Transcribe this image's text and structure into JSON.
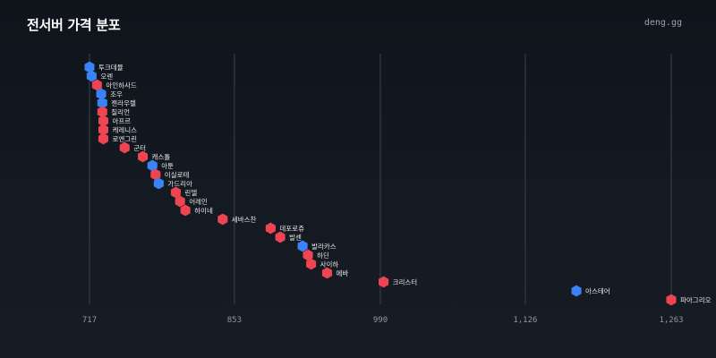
{
  "header": {
    "title": "전서버 가격 분포",
    "brand": "deng.gg"
  },
  "colors": {
    "red": "#ef4452",
    "blue": "#3b82f6",
    "background": "#12171e",
    "grid": "#3a424c"
  },
  "chart_data": {
    "type": "scatter",
    "title": "전서버 가격 분포",
    "xlabel": "",
    "ylabel": "",
    "xlim": [
      717,
      1263
    ],
    "x_ticks": [
      717,
      853,
      990,
      1126,
      1263
    ],
    "x_tick_labels": [
      "717",
      "853",
      "990",
      "1,126",
      "1,263"
    ],
    "grid": "vertical",
    "legend": "none",
    "points": [
      {
        "label": "투크데뮬",
        "value": 717,
        "color": "blue"
      },
      {
        "label": "오렌",
        "value": 719,
        "color": "blue"
      },
      {
        "label": "아인하사드",
        "value": 724,
        "color": "red"
      },
      {
        "label": "조우",
        "value": 728,
        "color": "blue"
      },
      {
        "label": "젠라우렐",
        "value": 729,
        "color": "blue"
      },
      {
        "label": "질리언",
        "value": 729,
        "color": "red"
      },
      {
        "label": "아프르",
        "value": 730,
        "color": "red"
      },
      {
        "label": "케레니스",
        "value": 730,
        "color": "red"
      },
      {
        "label": "로엔그린",
        "value": 730,
        "color": "red"
      },
      {
        "label": "군터",
        "value": 750,
        "color": "red"
      },
      {
        "label": "캐스톨",
        "value": 767,
        "color": "red"
      },
      {
        "label": "아툰",
        "value": 776,
        "color": "blue"
      },
      {
        "label": "이실로테",
        "value": 779,
        "color": "red"
      },
      {
        "label": "가드리아",
        "value": 782,
        "color": "blue"
      },
      {
        "label": "린델",
        "value": 798,
        "color": "red"
      },
      {
        "label": "어레인",
        "value": 802,
        "color": "red"
      },
      {
        "label": "하이네",
        "value": 807,
        "color": "red"
      },
      {
        "label": "세바스찬",
        "value": 842,
        "color": "red"
      },
      {
        "label": "데포로쥬",
        "value": 887,
        "color": "red"
      },
      {
        "label": "발센",
        "value": 896,
        "color": "red"
      },
      {
        "label": "발라카스",
        "value": 917,
        "color": "blue"
      },
      {
        "label": "하딘",
        "value": 922,
        "color": "red"
      },
      {
        "label": "사이하",
        "value": 925,
        "color": "red"
      },
      {
        "label": "에바",
        "value": 940,
        "color": "red"
      },
      {
        "label": "크리스터",
        "value": 993,
        "color": "red"
      },
      {
        "label": "아스테어",
        "value": 1174,
        "color": "blue"
      },
      {
        "label": "파아그리오",
        "value": 1263,
        "color": "red"
      }
    ]
  }
}
